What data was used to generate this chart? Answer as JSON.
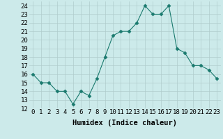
{
  "x": [
    0,
    1,
    2,
    3,
    4,
    5,
    6,
    7,
    8,
    9,
    10,
    11,
    12,
    13,
    14,
    15,
    16,
    17,
    18,
    19,
    20,
    21,
    22,
    23
  ],
  "y": [
    16,
    15,
    15,
    14,
    14,
    12.5,
    14,
    13.5,
    15.5,
    18,
    20.5,
    21,
    21,
    22,
    24,
    23,
    23,
    24,
    19,
    18.5,
    17,
    17,
    16.5,
    15.5
  ],
  "line_color": "#1a7a6e",
  "marker": "D",
  "marker_size": 2.5,
  "bg_color": "#cceaea",
  "grid_color": "#b0cccc",
  "xlabel": "Humidex (Indice chaleur)",
  "ylim": [
    12,
    24.5
  ],
  "xlim": [
    -0.5,
    23.5
  ],
  "yticks": [
    12,
    13,
    14,
    15,
    16,
    17,
    18,
    19,
    20,
    21,
    22,
    23,
    24
  ],
  "xticks": [
    0,
    1,
    2,
    3,
    4,
    5,
    6,
    7,
    8,
    9,
    10,
    11,
    12,
    13,
    14,
    15,
    16,
    17,
    18,
    19,
    20,
    21,
    22,
    23
  ],
  "xlabel_fontsize": 7.5,
  "tick_fontsize": 6.5
}
